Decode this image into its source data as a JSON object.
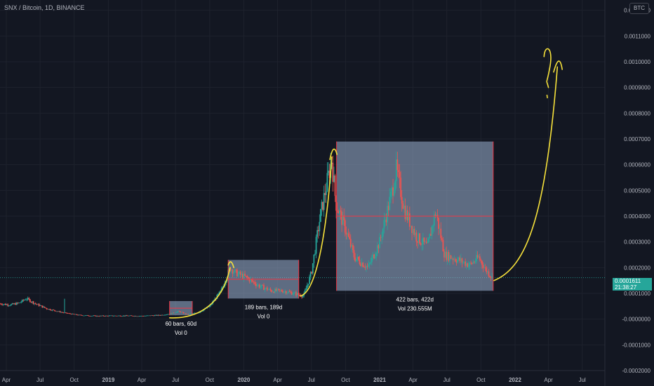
{
  "header": {
    "symbol_line": "SNX / Bitcoin, 1D, BINANCE",
    "currency_button": "BTC"
  },
  "price_badge": {
    "price": "0.0001611",
    "countdown": "21:38:27"
  },
  "colors": {
    "background": "#131722",
    "grid": "#1e222d",
    "axis_text": "#b2b5be",
    "up": "#26a69a",
    "down": "#ef5350",
    "range_fill": "#9db2d1",
    "range_border": "#f23645",
    "drawing": "#f7e23b"
  },
  "chart_data": {
    "type": "candlestick",
    "symbol": "SNX / Bitcoin",
    "interval": "1D",
    "exchange": "BINANCE",
    "ylim": [
      -0.0002,
      0.00124
    ],
    "y_ticks": [
      "0.0012000",
      "0.0011000",
      "0.0010000",
      "0.0009000",
      "0.0008000",
      "0.0007000",
      "0.0006000",
      "0.0005000",
      "0.0004000",
      "0.0003000",
      "0.0002000",
      "0.0001000",
      "-0.0000000",
      "-0.0001000",
      "-0.0002000"
    ],
    "y_tick_values": [
      0.0012,
      0.0011,
      0.001,
      0.0009,
      0.0008,
      0.0007,
      0.0006,
      0.0005,
      0.0004,
      0.0003,
      0.0002,
      0.0001,
      0.0,
      -0.0001,
      -0.0002
    ],
    "x_ticks": [
      {
        "label": "Apr",
        "year": false
      },
      {
        "label": "Jul",
        "year": false
      },
      {
        "label": "Oct",
        "year": false
      },
      {
        "label": "2019",
        "year": true
      },
      {
        "label": "Apr",
        "year": false
      },
      {
        "label": "Jul",
        "year": false
      },
      {
        "label": "Oct",
        "year": false
      },
      {
        "label": "2020",
        "year": true
      },
      {
        "label": "Apr",
        "year": false
      },
      {
        "label": "Jul",
        "year": false
      },
      {
        "label": "Oct",
        "year": false
      },
      {
        "label": "2021",
        "year": true
      },
      {
        "label": "Apr",
        "year": false
      },
      {
        "label": "Jul",
        "year": false
      },
      {
        "label": "Oct",
        "year": false
      },
      {
        "label": "2022",
        "year": true
      },
      {
        "label": "Apr",
        "year": false
      },
      {
        "label": "Jul",
        "year": false
      }
    ],
    "x_axis_start": "2018-03-15",
    "x_axis_end": "2022-08-31",
    "price_path": [
      [
        "2018-03-15",
        6e-05
      ],
      [
        "2018-04-10",
        5.5e-05
      ],
      [
        "2018-05-05",
        6.2e-05
      ],
      [
        "2018-05-25",
        8e-05
      ],
      [
        "2018-06-15",
        6.2e-05
      ],
      [
        "2018-07-20",
        4e-05
      ],
      [
        "2018-09-01",
        2.5e-05
      ],
      [
        "2018-10-15",
        1.5e-05
      ],
      [
        "2018-12-01",
        1.2e-05
      ],
      [
        "2019-02-01",
        1.3e-05
      ],
      [
        "2019-04-01",
        1.2e-05
      ],
      [
        "2019-05-20",
        1.5e-05
      ],
      [
        "2019-06-15",
        2e-05
      ],
      [
        "2019-07-10",
        3e-05
      ],
      [
        "2019-08-01",
        1.8e-05
      ],
      [
        "2019-09-01",
        2.5e-05
      ],
      [
        "2019-10-01",
        5e-05
      ],
      [
        "2019-11-01",
        0.00011
      ],
      [
        "2019-11-25",
        0.0002
      ],
      [
        "2019-12-10",
        0.00018
      ],
      [
        "2020-01-10",
        0.00016
      ],
      [
        "2020-02-10",
        0.00013
      ],
      [
        "2020-03-15",
        0.00011
      ],
      [
        "2020-04-15",
        0.00011
      ],
      [
        "2020-05-15",
        0.0001
      ],
      [
        "2020-06-10",
        9e-05
      ],
      [
        "2020-07-01",
        0.00018
      ],
      [
        "2020-07-25",
        0.0004
      ],
      [
        "2020-08-15",
        0.00055
      ],
      [
        "2020-08-25",
        0.00062
      ],
      [
        "2020-09-05",
        0.00045
      ],
      [
        "2020-10-01",
        0.00035
      ],
      [
        "2020-10-25",
        0.00024
      ],
      [
        "2020-12-01",
        0.0002
      ],
      [
        "2021-01-01",
        0.0003
      ],
      [
        "2021-02-01",
        0.00048
      ],
      [
        "2021-02-15",
        0.00058
      ],
      [
        "2021-03-10",
        0.00042
      ],
      [
        "2021-04-10",
        0.00032
      ],
      [
        "2021-05-10",
        0.00028
      ],
      [
        "2021-06-01",
        0.00042
      ],
      [
        "2021-06-25",
        0.00025
      ],
      [
        "2021-08-01",
        0.00023
      ],
      [
        "2021-09-01",
        0.00021
      ],
      [
        "2021-09-25",
        0.00024
      ],
      [
        "2021-10-15",
        0.00019
      ],
      [
        "2021-11-01",
        0.00016
      ]
    ],
    "volume_spikes": [
      "2018-09-05"
    ],
    "last_price": 0.0001611,
    "date_ranges": [
      {
        "start": "2019-06-15",
        "end": "2019-08-15",
        "low": 1.5e-05,
        "high": 7e-05,
        "label_line1": "60 bars, 60d",
        "label_line2": "Vol 0"
      },
      {
        "start": "2019-11-20",
        "end": "2020-05-28",
        "low": 8e-05,
        "high": 0.00023,
        "label_line1": "189 bars, 189d",
        "label_line2": "Vol 0"
      },
      {
        "start": "2020-09-07",
        "end": "2021-11-03",
        "low": 0.00011,
        "high": 0.00069,
        "label_line1": "422 bars, 422d",
        "label_line2": "Vol 230.555M"
      }
    ]
  }
}
